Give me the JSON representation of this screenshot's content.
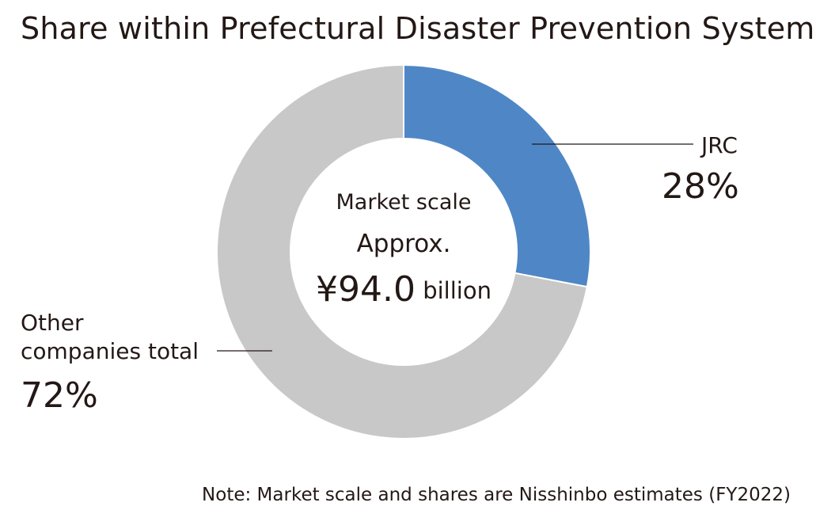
{
  "chart_data": {
    "type": "pie",
    "variant": "donut",
    "title": "Share within Prefectural Disaster Prevention Systems",
    "center_label": {
      "line1": "Market scale",
      "line2": "Approx.",
      "value": "¥94.0",
      "unit": "billion"
    },
    "slices": [
      {
        "label": "JRC",
        "value": 28,
        "display": "28%",
        "color": "#4f87c6"
      },
      {
        "label": "Other companies total",
        "label_lines": [
          "Other",
          "companies total"
        ],
        "value": 72,
        "display": "72%",
        "color": "#c8c8c8"
      }
    ],
    "note": "Note: Market scale and shares are Nisshinbo estimates (FY2022)"
  }
}
